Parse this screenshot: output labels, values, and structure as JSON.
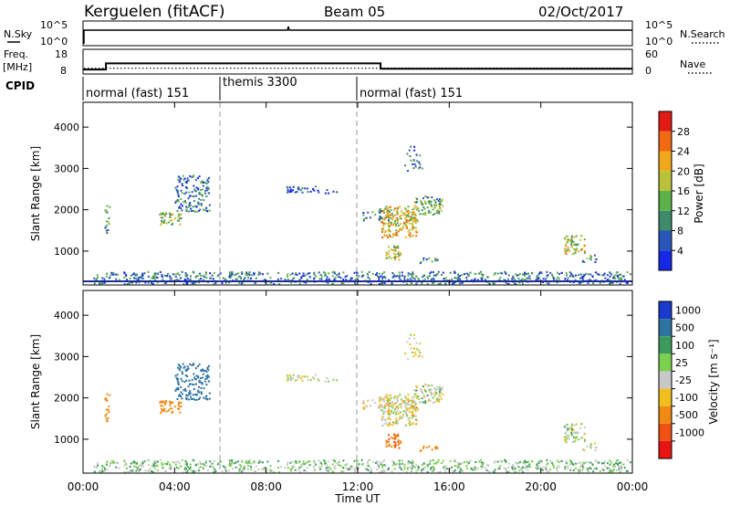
{
  "header": {
    "station": "Kerguelen (fitACF)",
    "beam": "Beam 05",
    "date": "02/Oct/2017"
  },
  "noise_panel": {
    "left_label": "N.Sky",
    "right_label": "N.Search",
    "ticks_left": [
      "10^5",
      "10^0"
    ],
    "ticks_right": [
      "10^5",
      "10^0"
    ]
  },
  "freq_panel": {
    "left_label_1": "Freq.",
    "left_label_2": "[MHz]",
    "ticks_left": [
      "18",
      "8"
    ],
    "right_label": "Nave",
    "ticks_right": [
      "60",
      "0"
    ]
  },
  "cpid": {
    "label": "CPID",
    "segments": [
      {
        "start_h": 0,
        "end_h": 6,
        "text": "normal (fast) 151"
      },
      {
        "start_h": 6,
        "end_h": 12,
        "text": "themis 3300"
      },
      {
        "start_h": 12,
        "end_h": 24,
        "text": "normal (fast) 151"
      }
    ]
  },
  "axes": {
    "xlabel": "Time UT",
    "x_ticks": [
      "00:00",
      "04:00",
      "08:00",
      "12:00",
      "16:00",
      "20:00",
      "00:00"
    ],
    "ylabel": "Slant Range [km]",
    "y_ticks": [
      "1000",
      "2000",
      "3000",
      "4000"
    ]
  },
  "power_colorbar": {
    "label": "Power [dB]",
    "ticks": [
      "4",
      "8",
      "12",
      "16",
      "20",
      "24",
      "28"
    ],
    "colors": [
      "#1428e6",
      "#2a55b8",
      "#3f8a6a",
      "#5cb14a",
      "#b9c23a",
      "#f0a81e",
      "#f06a14",
      "#e21a14"
    ]
  },
  "velocity_colorbar": {
    "label": "Velocity [m s⁻¹]",
    "ticks": [
      "1000",
      "500",
      "100",
      "25",
      "-25",
      "-100",
      "-500",
      "-1000"
    ],
    "colors": [
      "#1a3acc",
      "#2e72a0",
      "#3c9a5c",
      "#7ad14e",
      "#c8c8c8",
      "#f0bf1e",
      "#f08a14",
      "#f05014",
      "#e81414"
    ]
  },
  "chart_data": {
    "type": "heatmap",
    "x": {
      "unit": "hours UT",
      "range": [
        0,
        24
      ]
    },
    "y": {
      "unit": "km",
      "range": [
        180,
        4600
      ]
    },
    "cpid_changes_h": [
      6,
      12
    ],
    "frequency_mhz": [
      {
        "start_h": 0.0,
        "end_h": 1.0,
        "value": 8.5
      },
      {
        "start_h": 1.0,
        "end_h": 13.0,
        "value": 12.0
      },
      {
        "start_h": 13.0,
        "end_h": 24.0,
        "value": 9.0
      }
    ],
    "nave_dotted_level": 14,
    "backscatter_patches": [
      {
        "t0": 0.4,
        "t1": 24.0,
        "r0": 220,
        "r1": 520,
        "density": 0.55,
        "power_db": 8,
        "velocity": 40
      },
      {
        "t0": 0.85,
        "t1": 1.15,
        "r0": 1450,
        "r1": 2150,
        "density": 0.45,
        "power_db": 12,
        "velocity": -150
      },
      {
        "t0": 3.3,
        "t1": 4.3,
        "r0": 1650,
        "r1": 1950,
        "density": 0.75,
        "power_db": 16,
        "velocity": -200
      },
      {
        "t0": 4.0,
        "t1": 5.5,
        "r0": 1950,
        "r1": 2850,
        "density": 0.55,
        "power_db": 8,
        "velocity": 450
      },
      {
        "t0": 8.8,
        "t1": 10.3,
        "r0": 2420,
        "r1": 2600,
        "density": 0.6,
        "power_db": 6,
        "velocity": 0
      },
      {
        "t0": 10.5,
        "t1": 11.1,
        "r0": 2420,
        "r1": 2520,
        "density": 0.4,
        "power_db": 6,
        "velocity": 0
      },
      {
        "t0": 12.2,
        "t1": 13.4,
        "r0": 1750,
        "r1": 2050,
        "density": 0.45,
        "power_db": 8,
        "velocity": -30
      },
      {
        "t0": 13.0,
        "t1": 14.6,
        "r0": 1350,
        "r1": 2100,
        "density": 0.85,
        "power_db": 20,
        "velocity": -10
      },
      {
        "t0": 14.4,
        "t1": 15.7,
        "r0": 1900,
        "r1": 2350,
        "density": 0.7,
        "power_db": 14,
        "velocity": 10
      },
      {
        "t0": 13.2,
        "t1": 13.9,
        "r0": 800,
        "r1": 1150,
        "density": 0.8,
        "power_db": 18,
        "velocity": -300
      },
      {
        "t0": 14.7,
        "t1": 15.5,
        "r0": 720,
        "r1": 860,
        "density": 0.5,
        "power_db": 10,
        "velocity": -120
      },
      {
        "t0": 14.0,
        "t1": 14.8,
        "r0": 2950,
        "r1": 3550,
        "density": 0.25,
        "power_db": 6,
        "velocity": 0
      },
      {
        "t0": 21.0,
        "t1": 21.9,
        "r0": 950,
        "r1": 1400,
        "density": 0.75,
        "power_db": 18,
        "velocity": 10
      },
      {
        "t0": 21.8,
        "t1": 22.4,
        "r0": 700,
        "r1": 950,
        "density": 0.45,
        "power_db": 10,
        "velocity": 0
      }
    ]
  }
}
